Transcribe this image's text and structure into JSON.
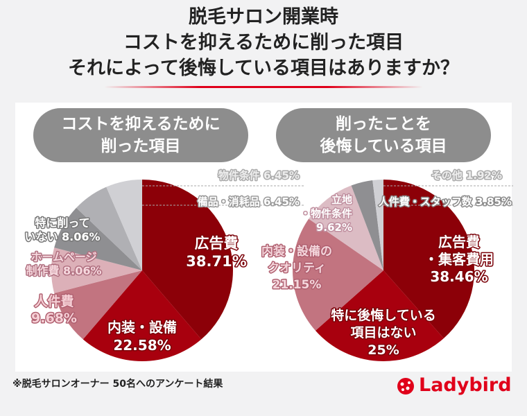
{
  "title_lines": [
    "脱毛サロン開業時",
    "コストを抑えるために削った項目",
    "それによって後悔している項目はありますか？"
  ],
  "footer": "※脱毛サロンオーナー 50名へのアンケート結果",
  "logo": "Ladybird",
  "chart_data": [
    {
      "type": "pie",
      "title_lines": [
        "コストを抑えるために",
        "削った項目"
      ],
      "slices": [
        {
          "label": "広告費",
          "value": 38.71,
          "color": "#8c0008"
        },
        {
          "label": "内装・設備",
          "value": 22.58,
          "color": "#a8000e"
        },
        {
          "label": "人件費",
          "value": 9.68,
          "color": "#c27480"
        },
        {
          "label": "ホームページ制作費",
          "value": 8.06,
          "color": "#dcb0b8"
        },
        {
          "label": "特に削っていない",
          "value": 8.06,
          "color": "#8f8f92"
        },
        {
          "label": "備品・消耗品",
          "value": 6.45,
          "color": "#b0b0b4"
        },
        {
          "label": "物件条件",
          "value": 6.45,
          "color": "#d0d0d4"
        }
      ]
    },
    {
      "type": "pie",
      "title_lines": [
        "削ったことを",
        "後悔している項目"
      ],
      "slices": [
        {
          "label": "広告費・集客費用",
          "value": 38.46,
          "color": "#8c0008"
        },
        {
          "label": "特に後悔している項目はない",
          "value": 25,
          "color": "#a8000e"
        },
        {
          "label": "内装・設備のクオリティ",
          "value": 21.15,
          "color": "#c27480"
        },
        {
          "label": "立地・物件条件",
          "value": 9.62,
          "color": "#dcbcc4"
        },
        {
          "label": "人件費・スタッフ数",
          "value": 3.85,
          "color": "#8f8f92"
        },
        {
          "label": "その他",
          "value": 1.92,
          "color": "#d0d0d4"
        }
      ]
    }
  ],
  "labels": {
    "left": [
      {
        "lines": [
          "広告費",
          "38.71%"
        ]
      },
      {
        "lines": [
          "内装・設備",
          "22.58%"
        ]
      },
      {
        "lines": [
          "人件費",
          "9.68%"
        ]
      },
      {
        "lines": [
          "ホームページ",
          "制作費 8.06%"
        ]
      },
      {
        "lines": [
          "特に削って",
          "いない 8.06%"
        ]
      },
      {
        "lines": [
          "備品・消耗品 6.45%"
        ]
      },
      {
        "lines": [
          "物件条件 6.45%"
        ]
      }
    ],
    "right": [
      {
        "lines": [
          "広告費",
          "・集客費用",
          "38.46%"
        ]
      },
      {
        "lines": [
          "特に後悔している",
          "項目はない",
          "25%"
        ]
      },
      {
        "lines": [
          "内装・設備の",
          "クオリティ",
          "21.15%"
        ]
      },
      {
        "lines": [
          "立地",
          "・物件条件",
          "9.62%"
        ]
      },
      {
        "lines": [
          "人件費・スタッフ数 3.85%"
        ]
      },
      {
        "lines": [
          "その他 1.92%"
        ]
      }
    ]
  }
}
